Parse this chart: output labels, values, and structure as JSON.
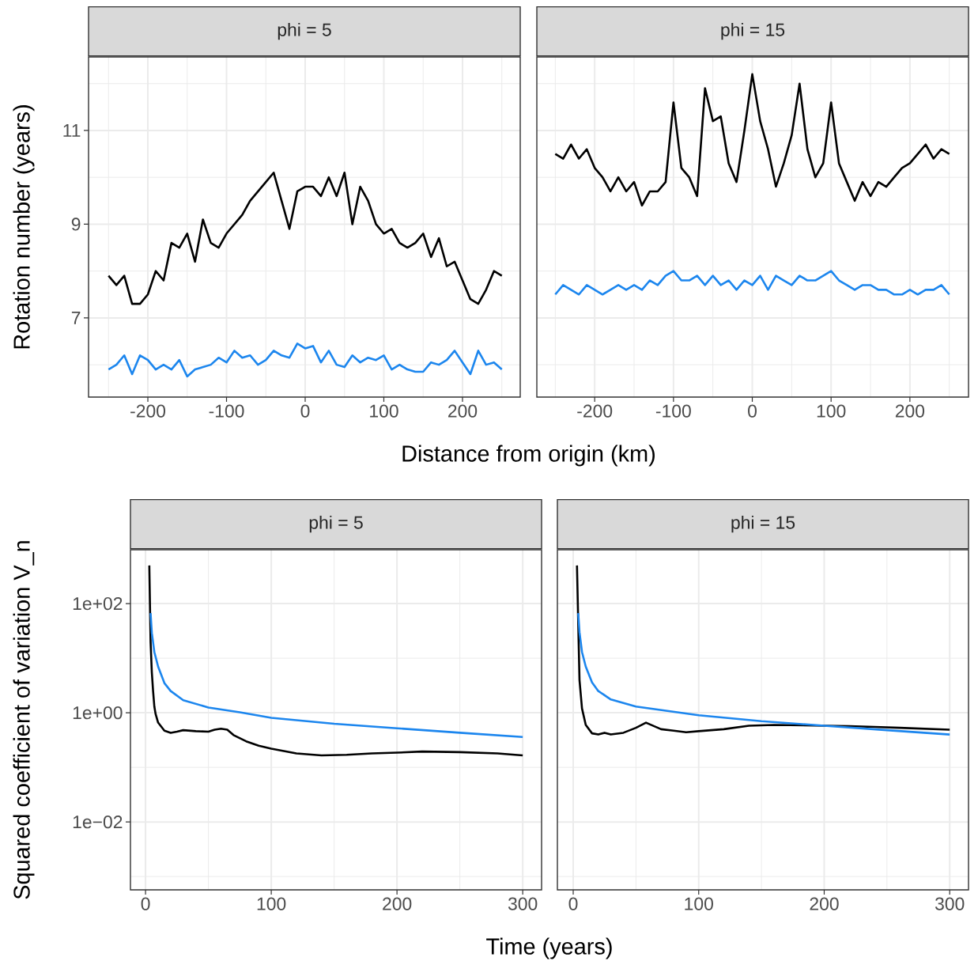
{
  "chart_data": [
    {
      "type": "line",
      "title": "phi = 5",
      "xlabel": "Distance from origin (km)",
      "ylabel": "Rotation number (years)",
      "grid": true,
      "xlim": [
        -275.4,
        273.4
      ],
      "ylim": [
        5.31,
        12.57
      ],
      "xticks": [
        -200,
        -100,
        0,
        100,
        200
      ],
      "yticks": [
        7,
        9,
        11
      ],
      "x": [
        -250,
        -240,
        -230,
        -220,
        -210,
        -200,
        -190,
        -180,
        -170,
        -160,
        -150,
        -140,
        -130,
        -120,
        -110,
        -100,
        -90,
        -80,
        -70,
        -60,
        -50,
        -40,
        -30,
        -20,
        -10,
        0,
        10,
        20,
        30,
        40,
        50,
        60,
        70,
        80,
        90,
        100,
        110,
        120,
        130,
        140,
        150,
        160,
        170,
        180,
        190,
        200,
        210,
        220,
        230,
        240,
        250
      ],
      "series": [
        {
          "color": "#000000",
          "values": [
            7.9,
            7.7,
            7.9,
            7.3,
            7.3,
            7.5,
            8.0,
            7.8,
            8.6,
            8.5,
            8.8,
            8.2,
            9.1,
            8.6,
            8.5,
            8.8,
            9.0,
            9.2,
            9.5,
            9.7,
            9.9,
            10.1,
            9.5,
            8.9,
            9.7,
            9.8,
            9.8,
            9.6,
            10.0,
            9.6,
            10.1,
            9.0,
            9.8,
            9.5,
            9.0,
            8.8,
            8.9,
            8.6,
            8.5,
            8.6,
            8.8,
            8.3,
            8.7,
            8.1,
            8.2,
            7.8,
            7.4,
            7.3,
            7.6,
            8.0,
            7.9
          ]
        },
        {
          "color": "#1c86ee",
          "values": [
            5.9,
            6.0,
            6.2,
            5.8,
            6.2,
            6.1,
            5.9,
            6.0,
            5.9,
            6.1,
            5.75,
            5.9,
            5.95,
            6.0,
            6.15,
            6.05,
            6.3,
            6.15,
            6.2,
            6.0,
            6.1,
            6.3,
            6.2,
            6.15,
            6.45,
            6.35,
            6.4,
            6.05,
            6.3,
            6.0,
            5.95,
            6.2,
            6.05,
            6.15,
            6.1,
            6.2,
            5.9,
            6.0,
            5.9,
            5.85,
            5.85,
            6.05,
            6.0,
            6.1,
            6.3,
            6.05,
            5.8,
            6.3,
            6.0,
            6.05,
            5.9
          ]
        }
      ]
    },
    {
      "type": "line",
      "title": "phi = 15",
      "grid": true,
      "tick_labels": "x",
      "xlim": [
        -273.4,
        274.4
      ],
      "ylim": [
        5.31,
        12.57
      ],
      "xticks": [
        -200,
        -100,
        0,
        100,
        200
      ],
      "yticks": [
        7,
        9,
        11
      ],
      "x": [
        -250,
        -240,
        -230,
        -220,
        -210,
        -200,
        -190,
        -180,
        -170,
        -160,
        -150,
        -140,
        -130,
        -120,
        -110,
        -100,
        -90,
        -80,
        -70,
        -60,
        -50,
        -40,
        -30,
        -20,
        -10,
        0,
        10,
        20,
        30,
        40,
        50,
        60,
        70,
        80,
        90,
        100,
        110,
        120,
        130,
        140,
        150,
        160,
        170,
        180,
        190,
        200,
        210,
        220,
        230,
        240,
        250
      ],
      "series": [
        {
          "color": "#000000",
          "values": [
            10.5,
            10.4,
            10.7,
            10.4,
            10.6,
            10.2,
            10.0,
            9.7,
            10.0,
            9.7,
            9.9,
            9.4,
            9.7,
            9.7,
            9.9,
            11.6,
            10.2,
            10.0,
            9.6,
            11.9,
            11.2,
            11.3,
            10.3,
            9.9,
            11.0,
            12.2,
            11.2,
            10.6,
            9.8,
            10.3,
            10.9,
            12.0,
            10.6,
            10.0,
            10.3,
            11.6,
            10.3,
            9.9,
            9.5,
            9.9,
            9.6,
            9.9,
            9.8,
            10.0,
            10.2,
            10.3,
            10.5,
            10.7,
            10.4,
            10.6,
            10.5
          ]
        },
        {
          "color": "#1c86ee",
          "values": [
            7.5,
            7.7,
            7.6,
            7.5,
            7.7,
            7.6,
            7.5,
            7.6,
            7.7,
            7.6,
            7.7,
            7.6,
            7.8,
            7.7,
            7.9,
            8.0,
            7.8,
            7.8,
            7.9,
            7.7,
            7.9,
            7.7,
            7.8,
            7.6,
            7.8,
            7.7,
            7.9,
            7.6,
            7.9,
            7.8,
            7.7,
            7.9,
            7.8,
            7.8,
            7.9,
            8.0,
            7.8,
            7.7,
            7.6,
            7.7,
            7.7,
            7.6,
            7.6,
            7.5,
            7.5,
            7.6,
            7.5,
            7.6,
            7.6,
            7.7,
            7.5
          ]
        }
      ]
    },
    {
      "type": "line",
      "title": "phi = 5",
      "xlabel": "Time (years)",
      "ylabel": "Squared coefficient of variation V_n",
      "grid": true,
      "log": "y",
      "xlim": [
        -12,
        315
      ],
      "ylim": [
        0.00057,
        970
      ],
      "xticks": [
        0,
        100,
        200,
        300
      ],
      "yticks": [
        {
          "value": 100,
          "label": "1e+02"
        },
        {
          "value": 1,
          "label": "1e+00"
        },
        {
          "value": 0.01,
          "label": "1e−02"
        }
      ],
      "series": [
        {
          "color": "#000000",
          "x": [
            3,
            4,
            5,
            6,
            7,
            8,
            10,
            15,
            20,
            25,
            30,
            40,
            50,
            55,
            60,
            65,
            70,
            80,
            90,
            100,
            120,
            140,
            160,
            180,
            200,
            220,
            250,
            280,
            300
          ],
          "values": [
            500,
            20,
            5.5,
            2.5,
            1.3,
            0.95,
            0.66,
            0.47,
            0.43,
            0.45,
            0.48,
            0.46,
            0.45,
            0.49,
            0.51,
            0.49,
            0.39,
            0.3,
            0.25,
            0.22,
            0.18,
            0.166,
            0.17,
            0.18,
            0.186,
            0.195,
            0.19,
            0.18,
            0.166
          ]
        },
        {
          "color": "#1c86ee",
          "x": [
            4,
            5,
            7,
            10,
            15,
            20,
            30,
            50,
            75,
            100,
            150,
            200,
            250,
            300
          ],
          "values": [
            67,
            29,
            13,
            7,
            3.5,
            2.5,
            1.7,
            1.25,
            1.02,
            0.81,
            0.63,
            0.52,
            0.43,
            0.36
          ]
        }
      ]
    },
    {
      "type": "line",
      "title": "phi = 15",
      "grid": true,
      "log": "y",
      "tick_labels": "x",
      "xlim": [
        -12.6,
        315
      ],
      "ylim": [
        0.00057,
        970
      ],
      "xticks": [
        0,
        100,
        200,
        300
      ],
      "yticks": [
        100,
        1,
        0.01
      ],
      "series": [
        {
          "color": "#000000",
          "x": [
            3,
            5,
            7,
            10,
            15,
            20,
            25,
            30,
            40,
            50,
            58,
            70,
            80,
            90,
            100,
            120,
            140,
            160,
            200,
            220,
            240,
            260,
            300
          ],
          "values": [
            500,
            4.0,
            1.2,
            0.6,
            0.42,
            0.4,
            0.43,
            0.4,
            0.43,
            0.53,
            0.66,
            0.5,
            0.47,
            0.44,
            0.46,
            0.5,
            0.58,
            0.6,
            0.58,
            0.57,
            0.55,
            0.53,
            0.49
          ]
        },
        {
          "color": "#1c86ee",
          "x": [
            4,
            5,
            7,
            10,
            15,
            20,
            30,
            50,
            75,
            100,
            150,
            200,
            250,
            300
          ],
          "values": [
            67,
            30,
            13,
            7,
            3.6,
            2.5,
            1.75,
            1.3,
            1.08,
            0.9,
            0.7,
            0.58,
            0.48,
            0.4
          ]
        }
      ]
    }
  ]
}
